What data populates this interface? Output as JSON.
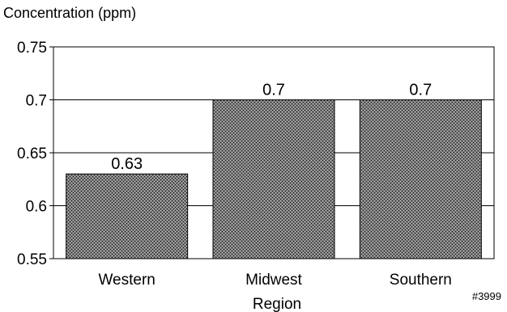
{
  "chart_data": {
    "type": "bar",
    "title": "",
    "ylabel": "Concentration (ppm)",
    "xlabel": "Region",
    "categories": [
      "Western",
      "Midwest",
      "Southern"
    ],
    "values": [
      0.63,
      0.7,
      0.7
    ],
    "data_labels": [
      "0.63",
      "0.7",
      "0.7"
    ],
    "ylim": [
      0.55,
      0.75
    ],
    "yticks": [
      0.55,
      0.6,
      0.65,
      0.7,
      0.75
    ],
    "ytick_labels": [
      "0.55",
      "0.6",
      "0.65",
      "0.7",
      "0.75"
    ],
    "grid": "horizontal",
    "legend": "none",
    "bar_fill": "stippled dark gray",
    "figure_id": "#3999"
  },
  "colors": {
    "bar_fill": "#7a7a7a",
    "bar_stipple_dark": "#1a1a1a",
    "bar_stipple_light": "#bfbfbf",
    "axis": "#000000",
    "grid": "#000000",
    "background": "#ffffff"
  }
}
